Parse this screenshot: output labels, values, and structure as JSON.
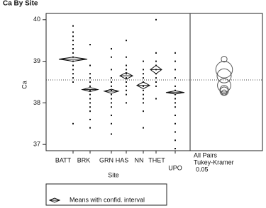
{
  "chart_data": {
    "type": "oneway",
    "title": "Ca By Site",
    "y_label": "Ca",
    "x_label": "Site",
    "categories": [
      "BATT",
      "BRK",
      "GRN",
      "HAS",
      "NN",
      "THET",
      "UPO"
    ],
    "means": [
      39.05,
      38.32,
      38.28,
      38.65,
      38.42,
      38.8,
      38.25
    ],
    "ci_half": [
      0.05,
      0.05,
      0.05,
      0.08,
      0.08,
      0.1,
      0.04
    ],
    "grand_mean": 38.55,
    "points": [
      [
        37.5,
        38.5,
        38.6,
        38.7,
        38.8,
        38.9,
        39.0,
        39.1,
        39.2,
        39.3,
        39.4,
        39.5,
        39.6,
        39.7,
        39.85
      ],
      [
        37.4,
        37.6,
        37.8,
        37.9,
        38.0,
        38.1,
        38.2,
        38.3,
        38.4,
        38.5,
        38.6,
        38.7,
        38.9,
        39.4
      ],
      [
        37.25,
        37.5,
        37.7,
        37.9,
        38.0,
        38.1,
        38.2,
        38.3,
        38.4,
        38.5,
        38.6,
        38.8,
        39.1,
        39.3
      ],
      [
        38.0,
        38.2,
        38.3,
        38.4,
        38.5,
        38.6,
        38.7,
        38.8,
        38.9,
        39.1,
        39.5
      ],
      [
        37.4,
        37.8,
        38.0,
        38.1,
        38.2,
        38.3,
        38.4,
        38.5,
        38.6,
        38.7,
        38.8,
        39.0
      ],
      [
        38.1,
        38.4,
        38.5,
        38.6,
        38.7,
        38.8,
        38.9,
        39.0,
        39.2,
        40.0
      ],
      [
        36.9,
        37.1,
        37.3,
        37.5,
        37.7,
        37.9,
        38.0,
        38.1,
        38.2,
        38.3,
        38.4,
        38.6,
        38.8,
        39.0,
        39.2
      ]
    ],
    "circle_radius": [
      0.07,
      0.1,
      0.1,
      0.17,
      0.16,
      0.2,
      0.06
    ],
    "ylim": [
      36.85,
      40.15
    ],
    "yticks": [
      37,
      38,
      39,
      40
    ],
    "comparison": [
      "All Pairs",
      "Tukey-Kramer"
    ],
    "alpha": 0.05,
    "legend_label": "Means with confid. interval"
  }
}
